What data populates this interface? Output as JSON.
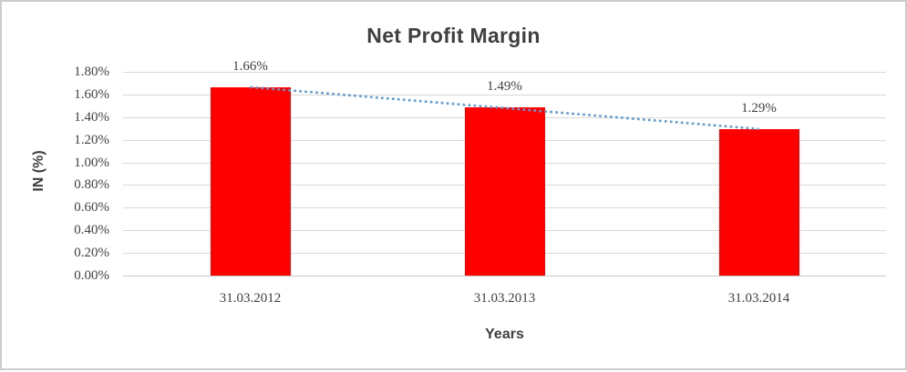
{
  "window": {
    "background": "#FFFFFF",
    "frame_border_color": "#CCCCCC"
  },
  "chart_data": {
    "type": "bar",
    "title": "Net Profit Margin",
    "xlabel": "Years",
    "ylabel": "IN (%)",
    "categories": [
      "31.03.2012",
      "31.03.2013",
      "31.03.2014"
    ],
    "values": [
      1.66,
      1.49,
      1.29
    ],
    "value_labels": [
      "1.66%",
      "1.49%",
      "1.29%"
    ],
    "yticks": [
      "0.00%",
      "0.20%",
      "0.40%",
      "0.60%",
      "0.80%",
      "1.00%",
      "1.20%",
      "1.40%",
      "1.60%",
      "1.80%"
    ],
    "ylim": [
      0,
      1.8
    ],
    "grid": true,
    "legend": "none",
    "bar_color": "#FF0000",
    "grid_color": "#D9D9D9",
    "text_color": "#404040",
    "title_color": "#3F3F3F",
    "trendline": {
      "type": "linear",
      "style": "dotted",
      "color": "#5B9BD5",
      "start_value": 1.665,
      "end_value": 1.295
    }
  }
}
